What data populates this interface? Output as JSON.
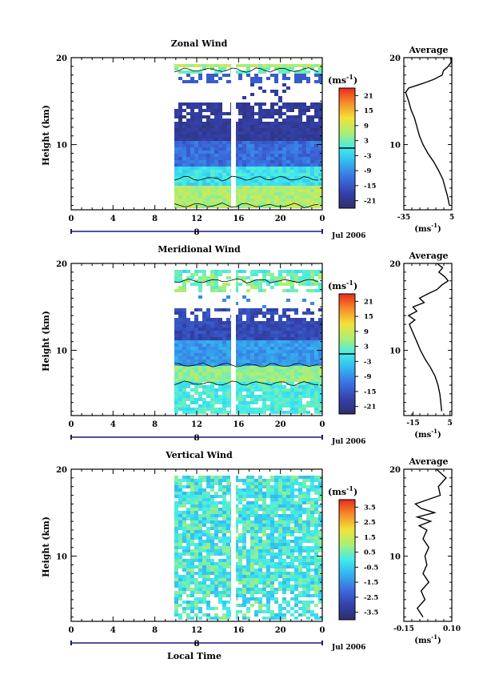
{
  "chart_data": [
    {
      "type": "heatmap",
      "title": "Zonal Wind",
      "ylabel": "Height (km)",
      "xlabel": "",
      "x_ticks": [
        "0",
        "4",
        "8",
        "12",
        "16",
        "20",
        "0"
      ],
      "xlim": [
        0,
        24
      ],
      "y_ticks": [
        "20",
        "10"
      ],
      "ylim": [
        2.5,
        20
      ],
      "date_label": "8",
      "month_label": "Jul 2006",
      "colorbar": {
        "unit_base": "(ms",
        "unit_exp": "-1",
        "unit_close": ")",
        "ticks": [
          "21",
          "15",
          "9",
          "3",
          "-3",
          "-9",
          "-15",
          "-21"
        ],
        "range": [
          -24,
          24
        ],
        "zero_line": true
      },
      "average": {
        "title": "Average",
        "x_ticks": [
          "-35",
          "5"
        ],
        "xlim": [
          -35,
          5
        ],
        "y_ticks": [
          "20",
          "10"
        ],
        "ylim": [
          2.5,
          20
        ],
        "xlabel_base": "(ms",
        "xlabel_exp": "-1",
        "xlabel_close": ")",
        "profile": [
          {
            "h": 3.0,
            "v": 3.0
          },
          {
            "h": 4.0,
            "v": 1.5
          },
          {
            "h": 5.0,
            "v": -0.5
          },
          {
            "h": 6.0,
            "v": -2.5
          },
          {
            "h": 7.0,
            "v": -6.0
          },
          {
            "h": 8.0,
            "v": -10.0
          },
          {
            "h": 9.0,
            "v": -15.0
          },
          {
            "h": 10.0,
            "v": -19.0
          },
          {
            "h": 11.0,
            "v": -22.0
          },
          {
            "h": 12.0,
            "v": -24.0
          },
          {
            "h": 13.0,
            "v": -26.0
          },
          {
            "h": 14.0,
            "v": -29.0
          },
          {
            "h": 15.0,
            "v": -31.0
          },
          {
            "h": 16.0,
            "v": -33.5
          },
          {
            "h": 16.5,
            "v": -31.0
          },
          {
            "h": 17.0,
            "v": -20.0
          },
          {
            "h": 17.5,
            "v": -10.0
          },
          {
            "h": 18.0,
            "v": -3.0
          },
          {
            "h": 18.5,
            "v": -2.0
          },
          {
            "h": 19.0,
            "v": 2.0
          },
          {
            "h": 19.5,
            "v": 4.5
          },
          {
            "h": 20.0,
            "v": 4.0
          }
        ]
      }
    },
    {
      "type": "heatmap",
      "title": "Meridional Wind",
      "ylabel": "Height (km)",
      "xlabel": "",
      "x_ticks": [
        "0",
        "4",
        "8",
        "12",
        "16",
        "20",
        "0"
      ],
      "xlim": [
        0,
        24
      ],
      "y_ticks": [
        "20",
        "10"
      ],
      "ylim": [
        2.5,
        20
      ],
      "date_label": "8",
      "month_label": "Jul 2006",
      "colorbar": {
        "unit_base": "(ms",
        "unit_exp": "-1",
        "unit_close": ")",
        "ticks": [
          "21",
          "15",
          "9",
          "3",
          "-3",
          "-9",
          "-15",
          "-21"
        ],
        "range": [
          -24,
          24
        ],
        "zero_line": true
      },
      "average": {
        "title": "Average",
        "x_ticks": [
          "-15",
          "5"
        ],
        "xlim": [
          -20,
          6
        ],
        "y_ticks": [
          "20",
          "10"
        ],
        "ylim": [
          2.5,
          20
        ],
        "xlabel_base": "(ms",
        "xlabel_exp": "-1",
        "xlabel_close": ")",
        "profile": [
          {
            "h": 3.0,
            "v": 0.5
          },
          {
            "h": 4.0,
            "v": 0.0
          },
          {
            "h": 5.0,
            "v": -0.5
          },
          {
            "h": 6.0,
            "v": -1.5
          },
          {
            "h": 7.0,
            "v": -3.0
          },
          {
            "h": 8.0,
            "v": -5.5
          },
          {
            "h": 9.0,
            "v": -8.5
          },
          {
            "h": 10.0,
            "v": -11.0
          },
          {
            "h": 11.0,
            "v": -13.0
          },
          {
            "h": 12.0,
            "v": -15.0
          },
          {
            "h": 13.0,
            "v": -17.0
          },
          {
            "h": 13.5,
            "v": -14.0
          },
          {
            "h": 14.0,
            "v": -17.5
          },
          {
            "h": 14.5,
            "v": -13.0
          },
          {
            "h": 15.0,
            "v": -15.0
          },
          {
            "h": 15.5,
            "v": -9.0
          },
          {
            "h": 16.0,
            "v": -11.5
          },
          {
            "h": 16.5,
            "v": -7.0
          },
          {
            "h": 17.0,
            "v": -2.0
          },
          {
            "h": 17.5,
            "v": 0.5
          },
          {
            "h": 18.0,
            "v": 4.0
          },
          {
            "h": 18.5,
            "v": 2.0
          },
          {
            "h": 19.0,
            "v": -1.0
          },
          {
            "h": 19.5,
            "v": 1.0
          },
          {
            "h": 20.0,
            "v": -2.0
          }
        ]
      }
    },
    {
      "type": "heatmap",
      "title": "Vertical Wind",
      "ylabel": "Height (km)",
      "xlabel": "Local Time",
      "x_ticks": [
        "0",
        "4",
        "8",
        "12",
        "16",
        "20",
        "0"
      ],
      "xlim": [
        0,
        24
      ],
      "y_ticks": [
        "20",
        "10"
      ],
      "ylim": [
        2.5,
        20
      ],
      "date_label": "8",
      "month_label": "Jul 2006",
      "colorbar": {
        "unit_base": "(ms",
        "unit_exp": "-1",
        "unit_close": ")",
        "ticks": [
          "3.5",
          "2.5",
          "1.5",
          "0.5",
          "-0.5",
          "-1.5",
          "-2.5",
          "-3.5"
        ],
        "range": [
          -4,
          4
        ],
        "zero_line": false
      },
      "average": {
        "title": "Average",
        "x_ticks": [
          "-0.15",
          "0.10"
        ],
        "xlim": [
          -0.15,
          0.1
        ],
        "y_ticks": [
          "20",
          "10"
        ],
        "ylim": [
          2.5,
          20
        ],
        "xlabel_base": "(ms",
        "xlabel_exp": "-1",
        "xlabel_close": ")",
        "profile": [
          {
            "h": 3.0,
            "v": -0.05
          },
          {
            "h": 4.0,
            "v": -0.08
          },
          {
            "h": 5.0,
            "v": -0.04
          },
          {
            "h": 6.0,
            "v": -0.06
          },
          {
            "h": 7.0,
            "v": -0.02
          },
          {
            "h": 8.0,
            "v": -0.05
          },
          {
            "h": 9.0,
            "v": -0.03
          },
          {
            "h": 10.0,
            "v": -0.04
          },
          {
            "h": 11.0,
            "v": -0.02
          },
          {
            "h": 12.0,
            "v": -0.05
          },
          {
            "h": 13.0,
            "v": -0.03
          },
          {
            "h": 13.5,
            "v": -0.07
          },
          {
            "h": 14.0,
            "v": -0.01
          },
          {
            "h": 14.5,
            "v": -0.08
          },
          {
            "h": 15.0,
            "v": 0.01
          },
          {
            "h": 15.5,
            "v": -0.06
          },
          {
            "h": 16.0,
            "v": -0.09
          },
          {
            "h": 17.0,
            "v": 0.04
          },
          {
            "h": 18.0,
            "v": 0.03
          },
          {
            "h": 19.0,
            "v": 0.07
          },
          {
            "h": 20.0,
            "v": 0.02
          }
        ]
      }
    }
  ]
}
